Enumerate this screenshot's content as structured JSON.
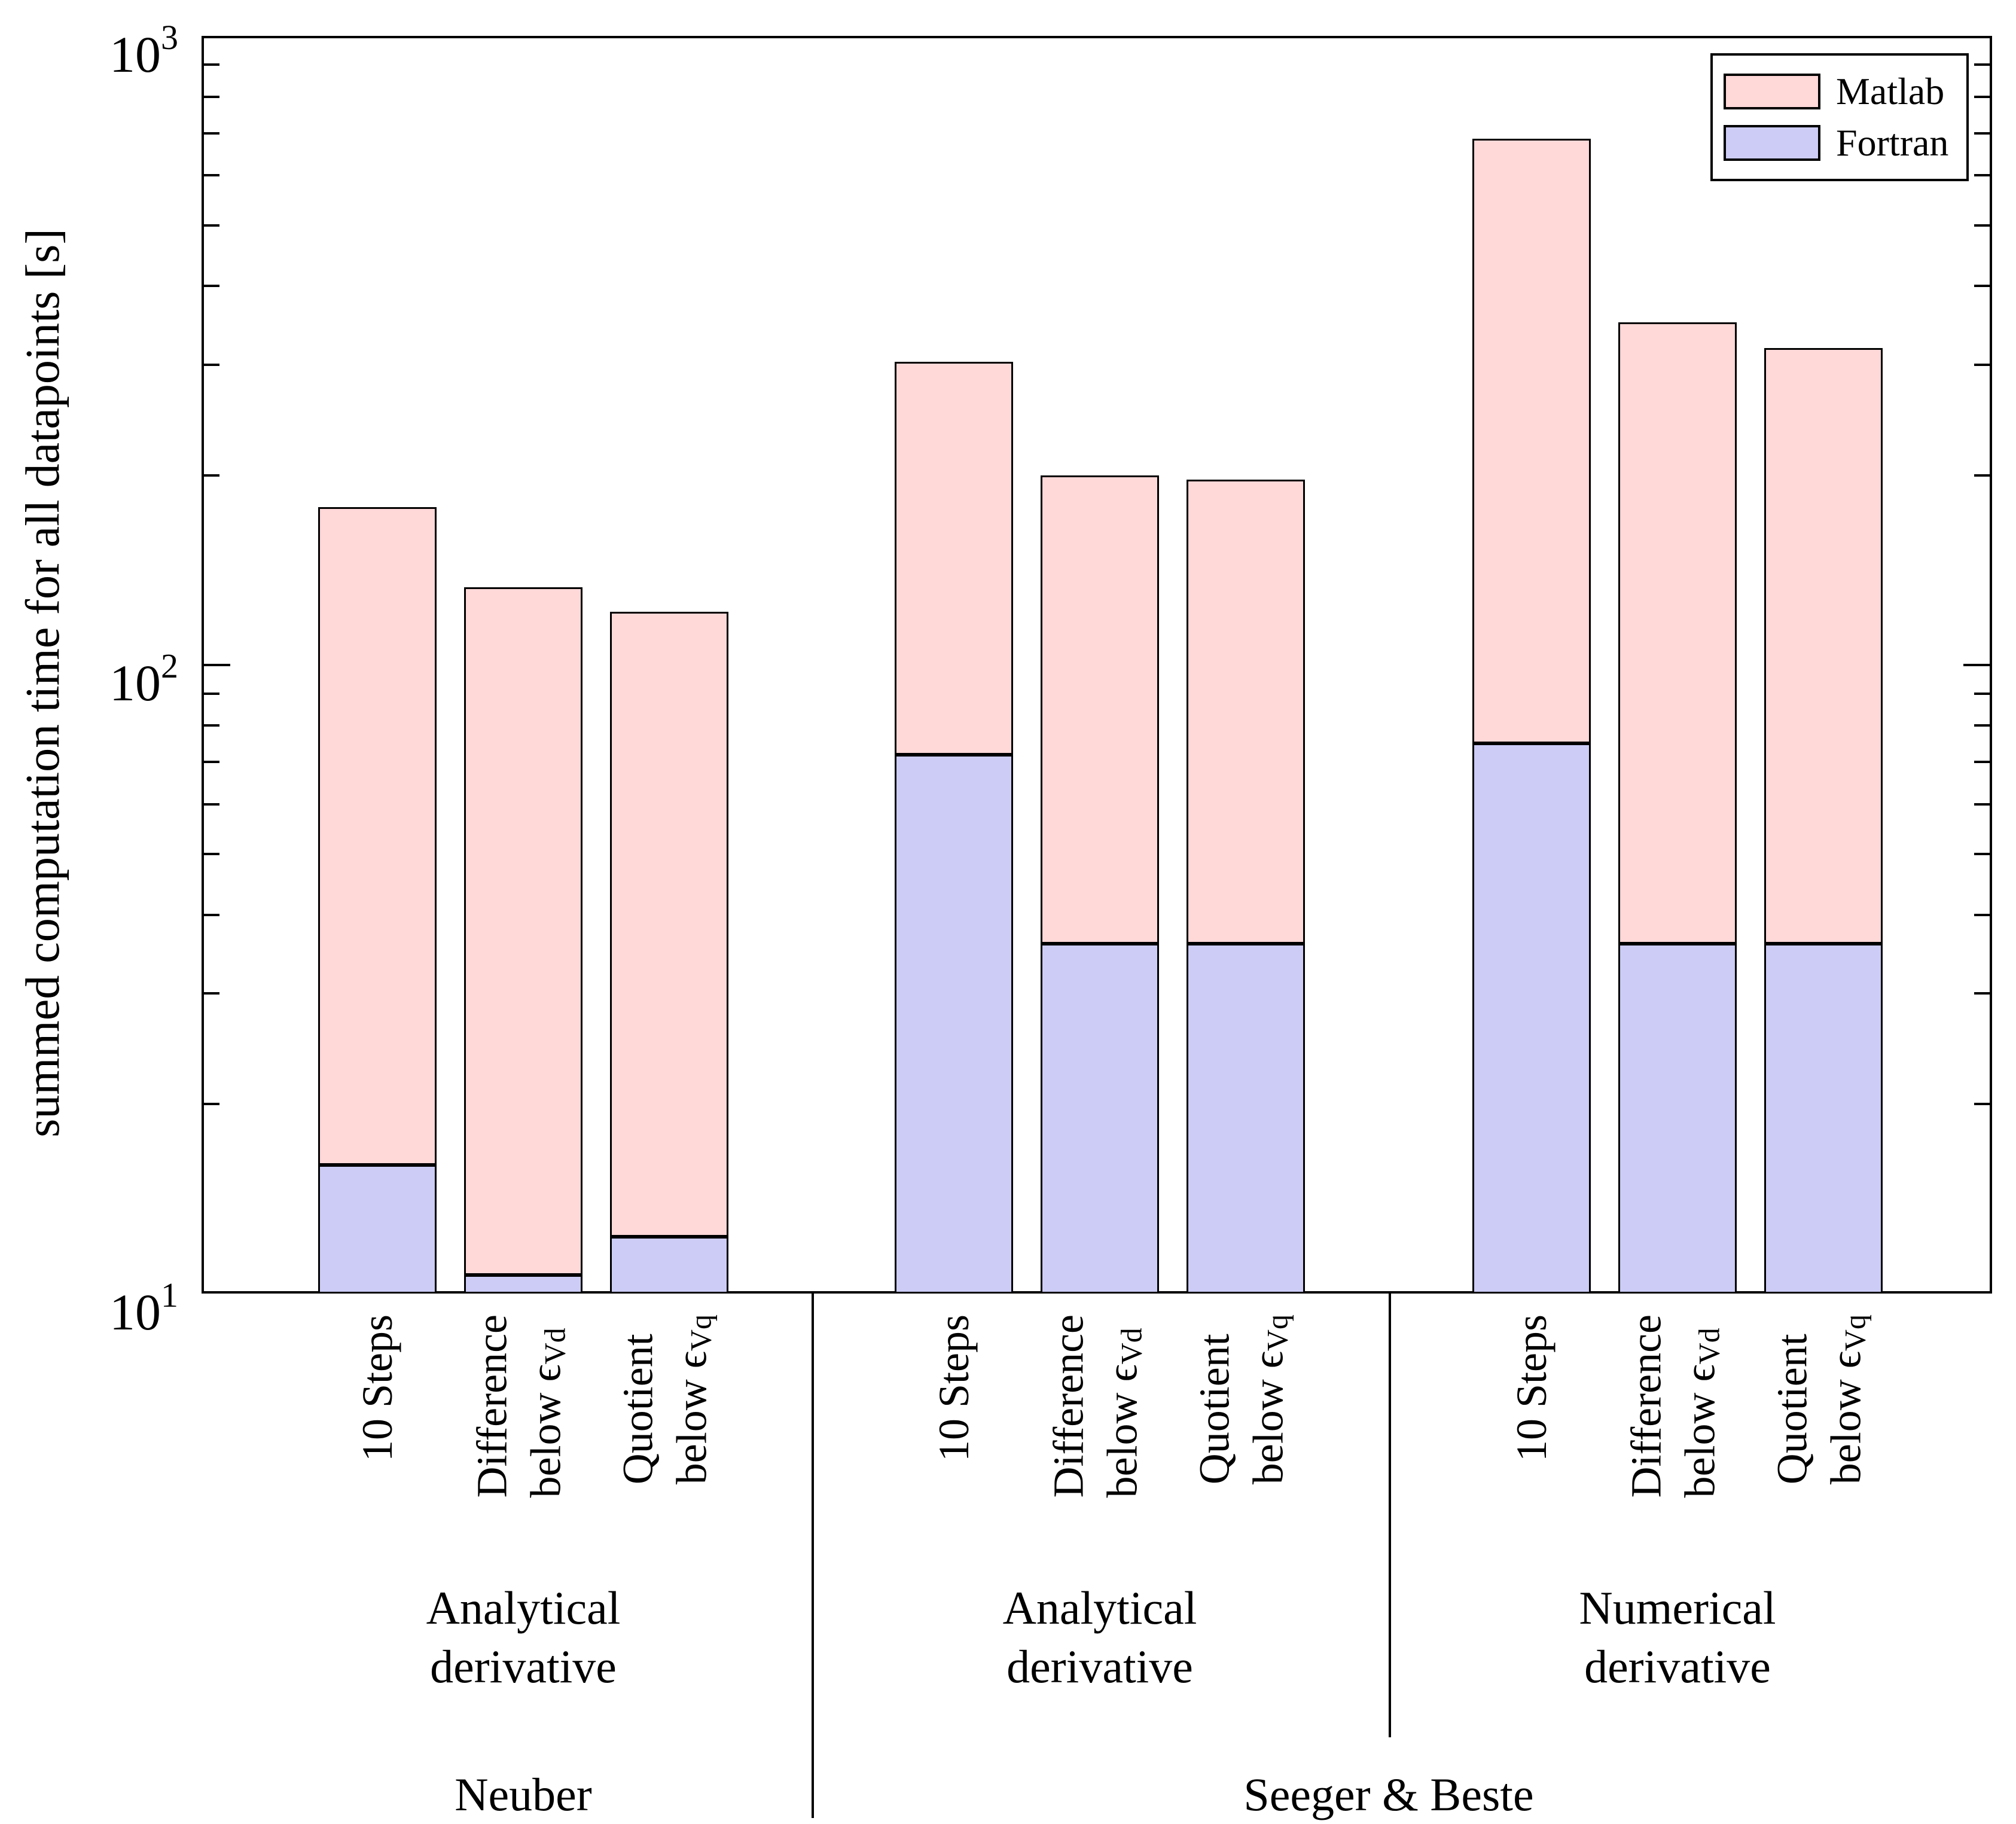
{
  "figure": {
    "ylabel": "summed computation time for all datapoints [s]",
    "y_ticks": [
      {
        "mantissa": "10",
        "exponent": "3",
        "value": 1000
      },
      {
        "mantissa": "10",
        "exponent": "2",
        "value": 100
      },
      {
        "mantissa": "10",
        "exponent": "1",
        "value": 10
      }
    ]
  },
  "legend": {
    "items": [
      {
        "label": "Matlab",
        "color": "#ffd8d8"
      },
      {
        "label": "Fortran",
        "color": "#ccccf7"
      }
    ]
  },
  "chart_data": {
    "type": "bar",
    "stacked": true,
    "y_scale": "log",
    "ylim": [
      10,
      1000
    ],
    "ylabel": "summed computation time for all datapoints [s]",
    "legend_position": "top-right",
    "grid": false,
    "series_names": [
      "Matlab",
      "Fortran"
    ],
    "units": "s",
    "groups": [
      {
        "method": "Neuber",
        "derivative_lines": [
          "Analytical",
          "derivative"
        ],
        "bars": [
          {
            "tick_lines": [
              "10 Steps"
            ],
            "tick_sub": "",
            "matlab": 162,
            "fortran": 16
          },
          {
            "tick_lines": [
              "Difference",
              "below ϵ"
            ],
            "tick_sub": "Vd",
            "matlab": 122,
            "fortran": 10.7
          },
          {
            "tick_lines": [
              "Quotient",
              "below ϵ"
            ],
            "tick_sub": "Vq",
            "matlab": 109,
            "fortran": 12.3
          }
        ]
      },
      {
        "method": "Seeger & Beste",
        "derivative_lines": [
          "Analytical",
          "derivative"
        ],
        "bars": [
          {
            "tick_lines": [
              "10 Steps"
            ],
            "tick_sub": "",
            "matlab": 231,
            "fortran": 72
          },
          {
            "tick_lines": [
              "Difference",
              "below ϵ"
            ],
            "tick_sub": "Vd",
            "matlab": 164,
            "fortran": 36
          },
          {
            "tick_lines": [
              "Quotient",
              "below ϵ"
            ],
            "tick_sub": "Vq",
            "matlab": 161,
            "fortran": 36
          }
        ]
      },
      {
        "method": "Seeger & Beste",
        "derivative_lines": [
          "Numerical",
          "derivative"
        ],
        "bars": [
          {
            "tick_lines": [
              "10 Steps"
            ],
            "tick_sub": "",
            "matlab": 611,
            "fortran": 75
          },
          {
            "tick_lines": [
              "Difference",
              "below ϵ"
            ],
            "tick_sub": "Vd",
            "matlab": 314,
            "fortran": 36
          },
          {
            "tick_lines": [
              "Quotient",
              "below ϵ"
            ],
            "tick_sub": "Vq",
            "matlab": 283,
            "fortran": 36
          }
        ]
      }
    ],
    "method_labels": [
      "Neuber",
      "Seeger & Beste"
    ]
  }
}
